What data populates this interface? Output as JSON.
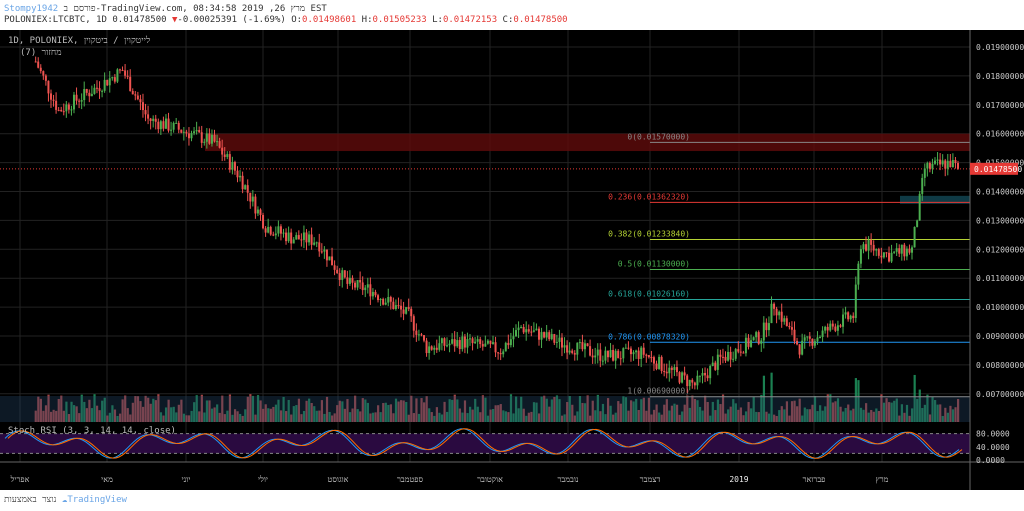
{
  "header": {
    "author": "Stompy1942",
    "published": "פורסם ב-TradingView.com, מרץ 26, 2019 08:34:58 EST",
    "symbol": "POLONIEX:LTCBTC, 1D",
    "last": "0.01478500",
    "change": "-0.00025391 (-1.69%)",
    "open": "0.01498601",
    "high": "0.01505233",
    "low": "0.01472153",
    "close": "0.01478500"
  },
  "chart_title": "1D, POLONIEX, לייטקוין / ביטקוין",
  "volume_label": "מחזור (7)",
  "rsi_label": "Stoch RSI (3, 3, 14, 14, close)",
  "footer": {
    "text": "נוצר באמצעות",
    "brand": "TradingView"
  },
  "colors": {
    "up": "#26a69a",
    "down": "#ef5350",
    "accent": "#e53935"
  },
  "chart_data": {
    "type": "candlestick",
    "ylim": [
      0.0065,
      0.0195
    ],
    "y_ticks": [
      "0.01900000",
      "0.01800000",
      "0.01700000",
      "0.01600000",
      "0.01500000",
      "0.01400000",
      "0.01300000",
      "0.01200000",
      "0.01100000",
      "0.01000000",
      "0.00900000",
      "0.00800000",
      "0.00700000"
    ],
    "last_price_label": "0.01478500",
    "x_ticks": [
      "אפריל",
      "מאי",
      "יוני",
      "יולי",
      "אוגוסט",
      "ספטמבר",
      "אוקטובר",
      "נובמבר",
      "דצמבר",
      "2019",
      "פברואר",
      "מרץ"
    ],
    "close_path": [
      [
        "2018-04-01",
        0.0185
      ],
      [
        "2018-04-10",
        0.0168
      ],
      [
        "2018-04-25",
        0.0176
      ],
      [
        "2018-05-05",
        0.0182
      ],
      [
        "2018-05-15",
        0.0165
      ],
      [
        "2018-06-01",
        0.016
      ],
      [
        "2018-06-10",
        0.0157
      ],
      [
        "2018-06-20",
        0.0145
      ],
      [
        "2018-06-30",
        0.0128
      ],
      [
        "2018-07-10",
        0.0124
      ],
      [
        "2018-07-20",
        0.0123
      ],
      [
        "2018-08-01",
        0.0108
      ],
      [
        "2018-08-10",
        0.0106
      ],
      [
        "2018-08-25",
        0.0097
      ],
      [
        "2018-09-01",
        0.0086
      ],
      [
        "2018-09-15",
        0.0088
      ],
      [
        "2018-09-30",
        0.0085
      ],
      [
        "2018-10-08",
        0.0093
      ],
      [
        "2018-10-25",
        0.0087
      ],
      [
        "2018-11-10",
        0.0083
      ],
      [
        "2018-11-25",
        0.0084
      ],
      [
        "2018-12-05",
        0.0078
      ],
      [
        "2018-12-15",
        0.0073
      ],
      [
        "2018-12-25",
        0.0082
      ],
      [
        "2019-01-10",
        0.009
      ],
      [
        "2019-01-15",
        0.0101
      ],
      [
        "2019-01-25",
        0.0086
      ],
      [
        "2019-02-10",
        0.0095
      ],
      [
        "2019-02-15",
        0.0097
      ],
      [
        "2019-02-18",
        0.0122
      ],
      [
        "2019-03-01",
        0.0118
      ],
      [
        "2019-03-10",
        0.012
      ],
      [
        "2019-03-15",
        0.0148
      ],
      [
        "2019-03-25",
        0.015
      ],
      [
        "2019-03-28",
        0.014785
      ]
    ],
    "fib_levels": [
      {
        "label": "0(0.01570000)",
        "value": 0.0157,
        "color": "#888888"
      },
      {
        "label": "0.236(0.01362320)",
        "value": 0.0136232,
        "color": "#e53935"
      },
      {
        "label": "0.382(0.01233840)",
        "value": 0.0123384,
        "color": "#b5d334"
      },
      {
        "label": "0.5(0.01130000)",
        "value": 0.0113,
        "color": "#4caf50"
      },
      {
        "label": "0.618(0.01026160)",
        "value": 0.0102616,
        "color": "#26a69a"
      },
      {
        "label": "0.786(0.00878320)",
        "value": 0.0087832,
        "color": "#2196f3"
      },
      {
        "label": "1(0.00690000)",
        "value": 0.0069,
        "color": "#888888"
      }
    ],
    "resistance_zone": [
      0.0154,
      0.016
    ],
    "rsi": {
      "ticks": [
        "80.0000",
        "40.0000",
        "0.0000"
      ],
      "band": [
        20,
        80
      ]
    }
  }
}
